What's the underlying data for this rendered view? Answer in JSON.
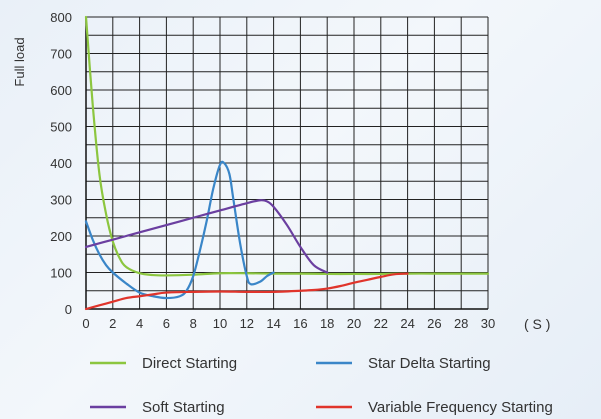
{
  "chart_data": {
    "type": "line",
    "ylabel": "Full load",
    "xunit": "( S )",
    "xlim": [
      0,
      30
    ],
    "ylim": [
      0,
      800
    ],
    "x_ticks": [
      0,
      2,
      4,
      6,
      8,
      10,
      12,
      14,
      16,
      18,
      20,
      22,
      24,
      26,
      28,
      30
    ],
    "y_ticks": [
      0,
      100,
      200,
      300,
      400,
      500,
      600,
      700,
      800
    ],
    "grid": true,
    "legend_position": "bottom",
    "series": [
      {
        "name": "Direct Starting",
        "color": "#8cc63f",
        "points": [
          [
            0,
            800
          ],
          [
            0.5,
            560
          ],
          [
            1,
            370
          ],
          [
            1.5,
            260
          ],
          [
            2,
            185
          ],
          [
            2.5,
            140
          ],
          [
            3,
            115
          ],
          [
            4,
            98
          ],
          [
            5,
            93
          ],
          [
            6,
            92
          ],
          [
            8,
            94
          ],
          [
            10,
            98
          ],
          [
            12,
            98
          ],
          [
            14,
            97
          ],
          [
            16,
            97
          ],
          [
            18,
            96
          ],
          [
            20,
            96
          ],
          [
            22,
            96
          ],
          [
            24,
            97
          ],
          [
            26,
            97
          ],
          [
            28,
            97
          ],
          [
            30,
            97
          ]
        ]
      },
      {
        "name": "Star Delta Starting",
        "color": "#3a86c8",
        "points": [
          [
            0,
            240
          ],
          [
            0.5,
            190
          ],
          [
            1,
            150
          ],
          [
            1.5,
            120
          ],
          [
            2,
            100
          ],
          [
            3,
            70
          ],
          [
            4,
            45
          ],
          [
            5,
            35
          ],
          [
            6,
            30
          ],
          [
            7,
            35
          ],
          [
            7.5,
            50
          ],
          [
            8,
            90
          ],
          [
            8.5,
            160
          ],
          [
            9,
            240
          ],
          [
            9.5,
            330
          ],
          [
            10,
            395
          ],
          [
            10.3,
            400
          ],
          [
            10.7,
            370
          ],
          [
            11,
            300
          ],
          [
            11.5,
            180
          ],
          [
            12,
            90
          ],
          [
            12.3,
            68
          ],
          [
            13,
            75
          ],
          [
            13.5,
            90
          ],
          [
            14,
            100
          ]
        ]
      },
      {
        "name": "Soft Starting",
        "color": "#6b3fa0",
        "points": [
          [
            0,
            170
          ],
          [
            2,
            190
          ],
          [
            4,
            210
          ],
          [
            6,
            230
          ],
          [
            8,
            250
          ],
          [
            10,
            270
          ],
          [
            12,
            290
          ],
          [
            13,
            298
          ],
          [
            13.5,
            295
          ],
          [
            14,
            280
          ],
          [
            15,
            230
          ],
          [
            16,
            170
          ],
          [
            17,
            120
          ],
          [
            18,
            100
          ]
        ]
      },
      {
        "name": "Variable Frequency Starting",
        "color": "#e0342b",
        "points": [
          [
            0,
            0
          ],
          [
            1,
            10
          ],
          [
            2,
            20
          ],
          [
            3,
            30
          ],
          [
            4,
            35
          ],
          [
            5,
            40
          ],
          [
            6,
            45
          ],
          [
            8,
            47
          ],
          [
            10,
            48
          ],
          [
            12,
            47
          ],
          [
            14,
            47
          ],
          [
            16,
            50
          ],
          [
            17,
            52
          ],
          [
            18,
            56
          ],
          [
            19,
            63
          ],
          [
            20,
            72
          ],
          [
            21,
            80
          ],
          [
            22,
            88
          ],
          [
            23,
            95
          ],
          [
            24,
            97
          ]
        ]
      }
    ]
  }
}
